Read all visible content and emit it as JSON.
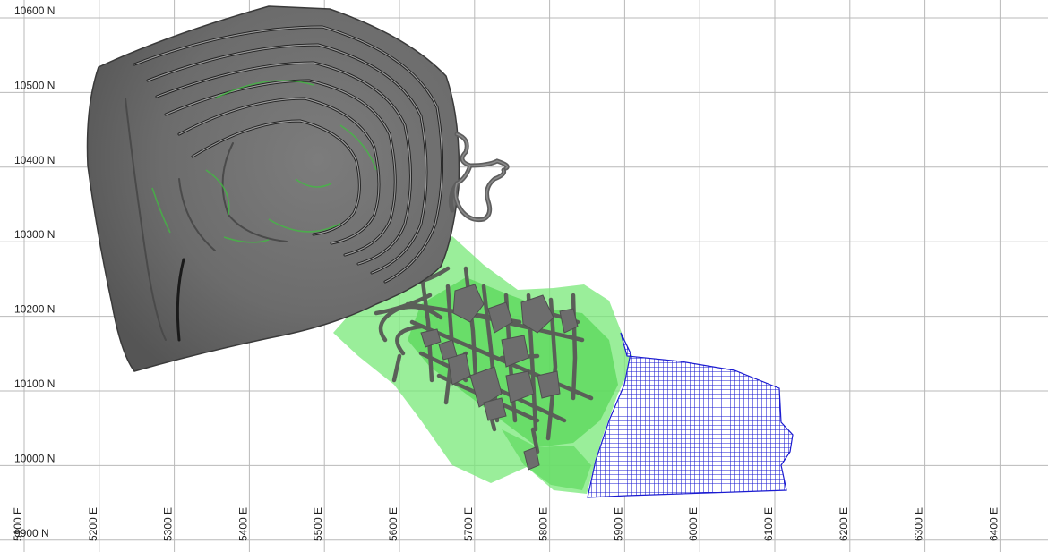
{
  "map": {
    "grid": {
      "east_values": [
        5100,
        5200,
        5300,
        5400,
        5500,
        5600,
        5700,
        5800,
        5900,
        6000,
        6100,
        6200,
        6300,
        6400
      ],
      "north_values": [
        10600,
        10500,
        10400,
        10300,
        10200,
        10100,
        10000,
        9900
      ]
    },
    "north_labels": [
      "10600 N",
      "10500 N",
      "10400 N",
      "10300 N",
      "10200 N",
      "10100 N",
      "10000 N",
      "9900 N"
    ],
    "east_labels": [
      "5100 E",
      "5200 E",
      "5300 E",
      "5400 E",
      "5500 E",
      "5600 E",
      "5700 E",
      "5800 E",
      "5900 E",
      "6000 E",
      "6100 E",
      "6200 E",
      "6300 E",
      "6400 E"
    ],
    "features": {
      "open_pit": {
        "color": "#6f6f6f"
      },
      "underground_workings": {
        "color": "#5a5f58"
      },
      "green_zone": {
        "color": "#3fdc3f"
      },
      "block_model": {
        "color": "#1b1bd1"
      }
    }
  }
}
